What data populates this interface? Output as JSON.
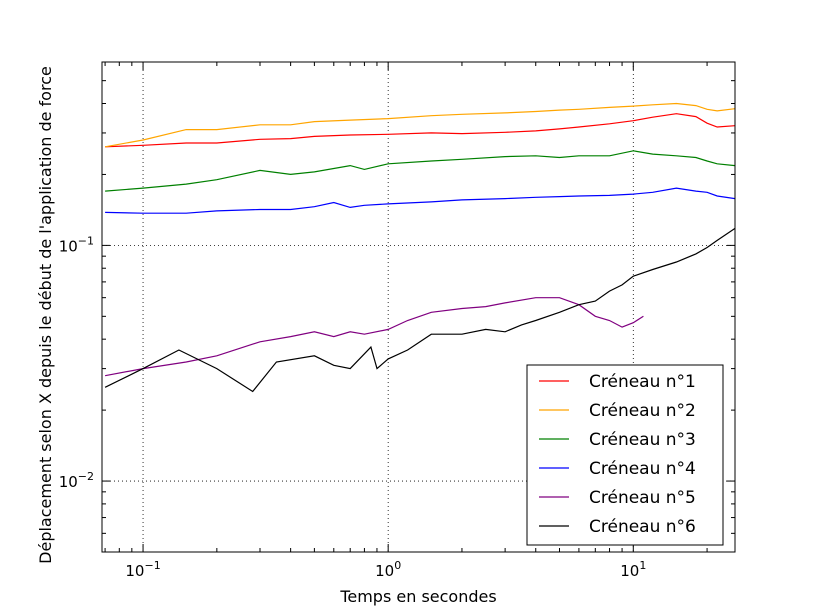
{
  "chart_data": {
    "type": "line",
    "xlabel": "Temps en secondes",
    "ylabel": "Déplacement selon X depuis le début de l'application de force",
    "xscale": "log",
    "yscale": "log",
    "xlim": [
      0.068,
      26
    ],
    "ylim": [
      0.005,
      0.6
    ],
    "grid": true,
    "legend_position": "lower-right",
    "x_ticks": [
      {
        "value": 0.1,
        "base": "10",
        "exp": "−1"
      },
      {
        "value": 1,
        "base": "10",
        "exp": "0"
      },
      {
        "value": 10,
        "base": "10",
        "exp": "1"
      }
    ],
    "y_ticks": [
      {
        "value": 0.01,
        "base": "10",
        "exp": "−2"
      },
      {
        "value": 0.1,
        "base": "10",
        "exp": "−1"
      }
    ],
    "series": [
      {
        "name": "Créneau n°1",
        "color": "#ff0000",
        "points": [
          [
            0.07,
            0.262
          ],
          [
            0.1,
            0.266
          ],
          [
            0.15,
            0.272
          ],
          [
            0.2,
            0.272
          ],
          [
            0.3,
            0.282
          ],
          [
            0.4,
            0.284
          ],
          [
            0.5,
            0.29
          ],
          [
            0.7,
            0.294
          ],
          [
            1.0,
            0.296
          ],
          [
            1.5,
            0.3
          ],
          [
            2,
            0.298
          ],
          [
            3,
            0.302
          ],
          [
            4,
            0.306
          ],
          [
            5,
            0.312
          ],
          [
            6,
            0.318
          ],
          [
            8,
            0.328
          ],
          [
            10,
            0.338
          ],
          [
            12,
            0.35
          ],
          [
            15,
            0.362
          ],
          [
            18,
            0.352
          ],
          [
            20,
            0.33
          ],
          [
            22,
            0.318
          ],
          [
            26,
            0.322
          ]
        ]
      },
      {
        "name": "Créneau n°2",
        "color": "#ffa500",
        "points": [
          [
            0.07,
            0.262
          ],
          [
            0.1,
            0.28
          ],
          [
            0.15,
            0.31
          ],
          [
            0.2,
            0.31
          ],
          [
            0.3,
            0.325
          ],
          [
            0.4,
            0.325
          ],
          [
            0.5,
            0.335
          ],
          [
            0.7,
            0.34
          ],
          [
            1.0,
            0.345
          ],
          [
            1.5,
            0.355
          ],
          [
            2,
            0.36
          ],
          [
            3,
            0.365
          ],
          [
            4,
            0.37
          ],
          [
            5,
            0.375
          ],
          [
            6,
            0.378
          ],
          [
            8,
            0.385
          ],
          [
            10,
            0.39
          ],
          [
            12,
            0.395
          ],
          [
            15,
            0.4
          ],
          [
            18,
            0.392
          ],
          [
            20,
            0.378
          ],
          [
            22,
            0.372
          ],
          [
            26,
            0.38
          ]
        ]
      },
      {
        "name": "Créneau n°3",
        "color": "#008000",
        "points": [
          [
            0.07,
            0.17
          ],
          [
            0.1,
            0.175
          ],
          [
            0.15,
            0.182
          ],
          [
            0.2,
            0.19
          ],
          [
            0.3,
            0.208
          ],
          [
            0.4,
            0.2
          ],
          [
            0.5,
            0.205
          ],
          [
            0.7,
            0.218
          ],
          [
            0.8,
            0.21
          ],
          [
            1.0,
            0.222
          ],
          [
            1.5,
            0.228
          ],
          [
            2,
            0.232
          ],
          [
            3,
            0.238
          ],
          [
            4,
            0.24
          ],
          [
            5,
            0.236
          ],
          [
            6,
            0.24
          ],
          [
            8,
            0.24
          ],
          [
            10,
            0.252
          ],
          [
            12,
            0.244
          ],
          [
            15,
            0.24
          ],
          [
            18,
            0.236
          ],
          [
            20,
            0.228
          ],
          [
            22,
            0.222
          ],
          [
            26,
            0.218
          ]
        ]
      },
      {
        "name": "Créneau n°4",
        "color": "#0000ff",
        "points": [
          [
            0.07,
            0.138
          ],
          [
            0.1,
            0.137
          ],
          [
            0.15,
            0.137
          ],
          [
            0.2,
            0.14
          ],
          [
            0.3,
            0.142
          ],
          [
            0.4,
            0.142
          ],
          [
            0.5,
            0.146
          ],
          [
            0.6,
            0.152
          ],
          [
            0.7,
            0.145
          ],
          [
            0.8,
            0.148
          ],
          [
            1.0,
            0.15
          ],
          [
            1.5,
            0.153
          ],
          [
            2,
            0.156
          ],
          [
            3,
            0.158
          ],
          [
            4,
            0.16
          ],
          [
            5,
            0.161
          ],
          [
            6,
            0.162
          ],
          [
            8,
            0.163
          ],
          [
            10,
            0.165
          ],
          [
            12,
            0.168
          ],
          [
            15,
            0.175
          ],
          [
            18,
            0.17
          ],
          [
            20,
            0.168
          ],
          [
            22,
            0.162
          ],
          [
            26,
            0.158
          ]
        ]
      },
      {
        "name": "Créneau n°5",
        "color": "#800080",
        "points": [
          [
            0.07,
            0.028
          ],
          [
            0.1,
            0.03
          ],
          [
            0.15,
            0.032
          ],
          [
            0.2,
            0.034
          ],
          [
            0.3,
            0.039
          ],
          [
            0.4,
            0.041
          ],
          [
            0.5,
            0.043
          ],
          [
            0.6,
            0.041
          ],
          [
            0.7,
            0.043
          ],
          [
            0.8,
            0.042
          ],
          [
            1.0,
            0.044
          ],
          [
            1.2,
            0.048
          ],
          [
            1.5,
            0.052
          ],
          [
            2,
            0.054
          ],
          [
            2.5,
            0.055
          ],
          [
            3,
            0.057
          ],
          [
            4,
            0.06
          ],
          [
            5,
            0.06
          ],
          [
            6,
            0.056
          ],
          [
            7,
            0.05
          ],
          [
            8,
            0.048
          ],
          [
            9,
            0.045
          ],
          [
            10,
            0.047
          ],
          [
            11,
            0.05
          ]
        ]
      },
      {
        "name": "Créneau n°6",
        "color": "#000000",
        "points": [
          [
            0.07,
            0.025
          ],
          [
            0.1,
            0.03
          ],
          [
            0.14,
            0.036
          ],
          [
            0.2,
            0.03
          ],
          [
            0.28,
            0.024
          ],
          [
            0.35,
            0.032
          ],
          [
            0.5,
            0.034
          ],
          [
            0.6,
            0.031
          ],
          [
            0.7,
            0.03
          ],
          [
            0.85,
            0.037
          ],
          [
            0.9,
            0.03
          ],
          [
            1.0,
            0.033
          ],
          [
            1.2,
            0.036
          ],
          [
            1.5,
            0.042
          ],
          [
            2,
            0.042
          ],
          [
            2.5,
            0.044
          ],
          [
            3,
            0.043
          ],
          [
            3.5,
            0.046
          ],
          [
            4,
            0.048
          ],
          [
            5,
            0.052
          ],
          [
            6,
            0.056
          ],
          [
            7,
            0.058
          ],
          [
            8,
            0.064
          ],
          [
            9,
            0.068
          ],
          [
            10,
            0.074
          ],
          [
            12,
            0.079
          ],
          [
            15,
            0.085
          ],
          [
            18,
            0.092
          ],
          [
            20,
            0.098
          ],
          [
            22,
            0.105
          ],
          [
            26,
            0.118
          ]
        ]
      }
    ]
  }
}
